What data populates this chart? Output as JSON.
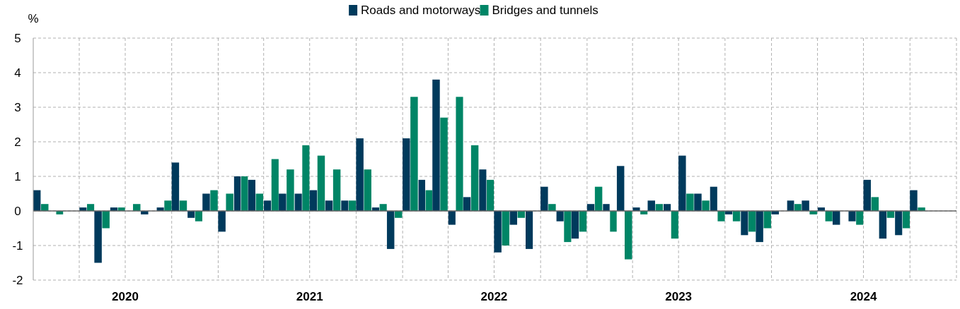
{
  "chart_data": {
    "type": "bar",
    "ylabel": "%",
    "x": [
      "2020-01-16",
      "2020-02-15",
      "2020-03-16",
      "2020-04-16",
      "2020-05-16",
      "2020-06-16",
      "2020-07-16",
      "2020-08-16",
      "2020-09-16",
      "2020-10-16",
      "2020-11-16",
      "2020-12-16",
      "2021-01-16",
      "2021-02-15",
      "2021-03-16",
      "2021-04-16",
      "2021-05-16",
      "2021-06-16",
      "2021-07-16",
      "2021-08-16",
      "2021-09-16",
      "2021-10-16",
      "2021-11-16",
      "2021-12-16",
      "2022-01-16",
      "2022-02-15",
      "2022-03-16",
      "2022-04-16",
      "2022-05-16",
      "2022-06-16",
      "2022-07-16",
      "2022-08-16",
      "2022-09-16",
      "2022-10-16",
      "2022-11-16",
      "2022-12-16",
      "2023-01-16",
      "2023-02-15",
      "2023-03-16",
      "2023-04-16",
      "2023-05-16",
      "2023-06-16",
      "2023-07-16",
      "2023-08-16",
      "2023-09-16",
      "2023-10-16",
      "2023-11-16",
      "2023-12-16",
      "2024-01-16",
      "2024-02-15",
      "2024-03-16",
      "2024-04-16",
      "2024-05-16",
      "2024-06-16",
      "2024-07-16",
      "2024-08-16",
      "2024-09-16",
      "2024-10-16"
    ],
    "series": [
      {
        "name": "Roads and motorways",
        "color": "#003a5c",
        "values": [
          0.6,
          0,
          0,
          0.1,
          -1.5,
          0.1,
          0,
          -0.1,
          0.1,
          1.4,
          -0.2,
          0.5,
          -0.6,
          1.0,
          0.9,
          0.3,
          0.5,
          0.5,
          0.6,
          0.3,
          0.3,
          2.1,
          0.1,
          -1.1,
          2.1,
          0.9,
          3.8,
          -0.4,
          0.4,
          1.2,
          -1.2,
          -0.4,
          -1.1,
          0.7,
          -0.3,
          -0.8,
          0.2,
          0.2,
          1.3,
          0.1,
          0.3,
          0.2,
          1.6,
          0.5,
          0.7,
          -0.1,
          -0.7,
          -0.9,
          -0.1,
          0.3,
          0.3,
          0.1,
          -0.4,
          -0.3,
          0.9,
          -0.8,
          -0.7,
          0.6
        ]
      },
      {
        "name": "Bridges and tunnels",
        "color": "#008566",
        "values": [
          0.2,
          -0.1,
          0,
          0.2,
          -0.5,
          0.1,
          0.2,
          0,
          0.3,
          0.3,
          -0.3,
          0.6,
          0.5,
          1.0,
          0.5,
          1.5,
          1.2,
          1.9,
          1.6,
          1.2,
          0.3,
          1.2,
          0.2,
          -0.2,
          3.3,
          0.6,
          2.7,
          3.3,
          1.9,
          0.9,
          -1.0,
          -0.2,
          0,
          0.2,
          -0.9,
          -0.6,
          0.7,
          -0.6,
          -1.4,
          -0.1,
          0.2,
          -0.8,
          0.5,
          0.3,
          -0.3,
          -0.3,
          -0.6,
          -0.5,
          0,
          0.2,
          -0.1,
          -0.3,
          0,
          -0.4,
          0.4,
          -0.2,
          -0.5,
          0.1
        ]
      }
    ],
    "xlim": [
      "2020-01",
      "2025-01"
    ],
    "xticks": [
      {
        "value": "2020-04",
        "label": null
      },
      {
        "value": "2020-07",
        "label": "2020"
      },
      {
        "value": "2020-10",
        "label": null
      },
      {
        "value": "2021-01",
        "label": null
      },
      {
        "value": "2021-04",
        "label": null
      },
      {
        "value": "2021-07",
        "label": "2021"
      },
      {
        "value": "2021-10",
        "label": null
      },
      {
        "value": "2022-01",
        "label": null
      },
      {
        "value": "2022-04",
        "label": null
      },
      {
        "value": "2022-07",
        "label": "2022"
      },
      {
        "value": "2022-10",
        "label": null
      },
      {
        "value": "2023-01",
        "label": null
      },
      {
        "value": "2023-04",
        "label": null
      },
      {
        "value": "2023-07",
        "label": "2023"
      },
      {
        "value": "2023-10",
        "label": null
      },
      {
        "value": "2024-01",
        "label": null
      },
      {
        "value": "2024-04",
        "label": null
      },
      {
        "value": "2024-07",
        "label": "2024"
      },
      {
        "value": "2024-10",
        "label": null
      },
      {
        "value": "2025-01",
        "label": null
      }
    ],
    "ylim": [
      -2,
      5
    ],
    "yticks": [
      -2,
      -1,
      0,
      1,
      2,
      3,
      4,
      5
    ],
    "grid": true,
    "legend": "top"
  }
}
